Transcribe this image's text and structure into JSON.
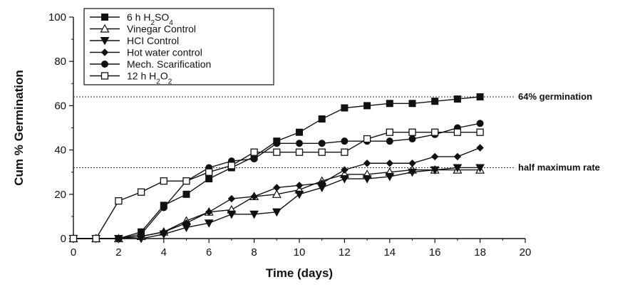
{
  "chart_data": {
    "type": "line",
    "title": "",
    "xlabel": "Time (days)",
    "ylabel": "Cum % Germination",
    "xlim": [
      0,
      20
    ],
    "ylim": [
      0,
      100
    ],
    "xticks": [
      0,
      2,
      4,
      6,
      8,
      10,
      12,
      14,
      16,
      18,
      20
    ],
    "yticks": [
      0,
      20,
      40,
      60,
      80,
      100
    ],
    "grid": false,
    "legend_position": "top-left",
    "x": [
      0,
      1,
      2,
      3,
      4,
      5,
      6,
      7,
      8,
      9,
      10,
      11,
      12,
      13,
      14,
      15,
      16,
      17,
      18
    ],
    "series": [
      {
        "name": "6 h H2SO4",
        "legend": {
          "main": "6 h H",
          "sub1": "2",
          "mid": "SO",
          "sub2": "4"
        },
        "marker": "square-filled",
        "x": [
          0,
          1,
          2,
          3,
          4,
          5,
          6,
          7,
          8,
          9,
          10,
          11,
          12,
          13,
          14,
          15,
          16,
          17,
          18
        ],
        "values": [
          0,
          0,
          0,
          3,
          15,
          20,
          27,
          32,
          37,
          44,
          48,
          54,
          59,
          60,
          61,
          61,
          62,
          63,
          64
        ]
      },
      {
        "name": "Vinegar Control",
        "legend": {
          "main": "Vinegar Control"
        },
        "marker": "triangle-up-open",
        "x": [
          0,
          1,
          2,
          3,
          4,
          5,
          6,
          7,
          8,
          9,
          10,
          11,
          12,
          13,
          14,
          15,
          16,
          17,
          18
        ],
        "values": [
          0,
          0,
          0,
          1,
          3,
          8,
          12,
          13,
          19,
          20,
          22,
          26,
          29,
          29,
          30,
          31,
          31,
          31,
          31
        ]
      },
      {
        "name": "HCI Control",
        "legend": {
          "main": "HCI Control"
        },
        "marker": "triangle-down-filled",
        "x": [
          0,
          1,
          2,
          3,
          4,
          5,
          6,
          7,
          8,
          9,
          10,
          11,
          12,
          13,
          14,
          15,
          16,
          17,
          18
        ],
        "values": [
          0,
          0,
          0,
          0,
          2,
          5,
          7,
          11,
          11,
          12,
          20,
          23,
          27,
          27,
          28,
          30,
          31,
          32,
          32
        ]
      },
      {
        "name": "Hot water control",
        "legend": {
          "main": "Hot water control"
        },
        "marker": "diamond-filled",
        "x": [
          0,
          1,
          2,
          3,
          4,
          5,
          6,
          7,
          8,
          9,
          10,
          11,
          12,
          13,
          14,
          15,
          16,
          17,
          18
        ],
        "values": [
          0,
          0,
          0,
          1,
          3,
          7,
          12,
          18,
          19,
          23,
          24,
          25,
          31,
          34,
          34,
          34,
          37,
          37,
          41
        ]
      },
      {
        "name": "Mech. Scarification",
        "legend": {
          "main": "Mech. Scarification"
        },
        "marker": "circle-filled",
        "x": [
          0,
          1,
          2,
          3,
          4,
          5,
          6,
          7,
          8,
          9,
          10,
          11,
          12,
          13,
          14,
          15,
          16,
          17,
          18
        ],
        "values": [
          0,
          0,
          0,
          2,
          14,
          26,
          32,
          35,
          36,
          43,
          43,
          43,
          44,
          44,
          44,
          45,
          47,
          50,
          52
        ]
      },
      {
        "name": "12 h H2O2",
        "legend": {
          "main": "12 h H",
          "sub1": "2",
          "mid": "O",
          "sub2": "2"
        },
        "marker": "square-open",
        "x": [
          0,
          1,
          2,
          3,
          4,
          5,
          6,
          7,
          8,
          9,
          10,
          11,
          12,
          13,
          14,
          15,
          16,
          17,
          18
        ],
        "values": [
          0,
          0,
          17,
          21,
          26,
          26,
          30,
          33,
          39,
          39,
          39,
          39,
          39,
          45,
          48,
          48,
          48,
          48,
          48
        ]
      }
    ],
    "reference_lines": [
      {
        "y": 64,
        "label": "64% germination",
        "style": "dotted"
      },
      {
        "y": 32,
        "label": "half maximum rate",
        "style": "dotted"
      }
    ]
  }
}
